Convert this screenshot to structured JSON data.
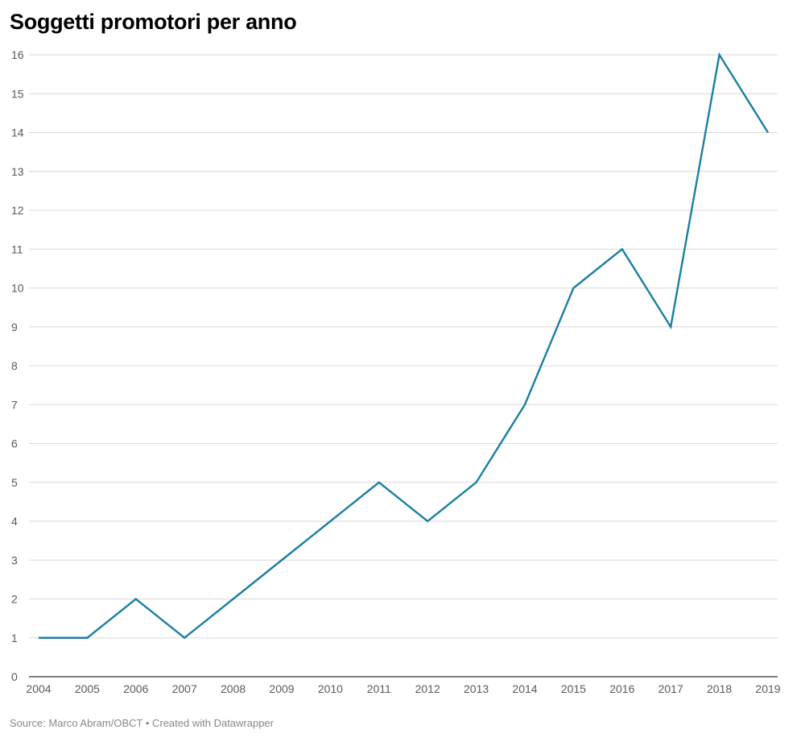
{
  "chart_data": {
    "type": "line",
    "title": "Soggetti promotori per anno",
    "x": [
      "2004",
      "2005",
      "2006",
      "2007",
      "2008",
      "2009",
      "2010",
      "2011",
      "2012",
      "2013",
      "2014",
      "2015",
      "2016",
      "2017",
      "2018",
      "2019"
    ],
    "series": [
      {
        "values": [
          1,
          1,
          2,
          1,
          2,
          3,
          4,
          5,
          4,
          5,
          7,
          10,
          11,
          9,
          16,
          14
        ]
      }
    ],
    "y_ticks": [
      0,
      1,
      2,
      3,
      4,
      5,
      6,
      7,
      8,
      9,
      10,
      11,
      12,
      13,
      14,
      15,
      16
    ],
    "ylim": [
      0,
      16
    ],
    "xlabel": "",
    "ylabel": "",
    "grid": true
  },
  "colors": {
    "line": "#1a7fa3",
    "grid": "#d9d9d9",
    "axis": "#333333"
  },
  "footer": {
    "text": "Source: Marco Abram/OBCT • Created with Datawrapper"
  }
}
